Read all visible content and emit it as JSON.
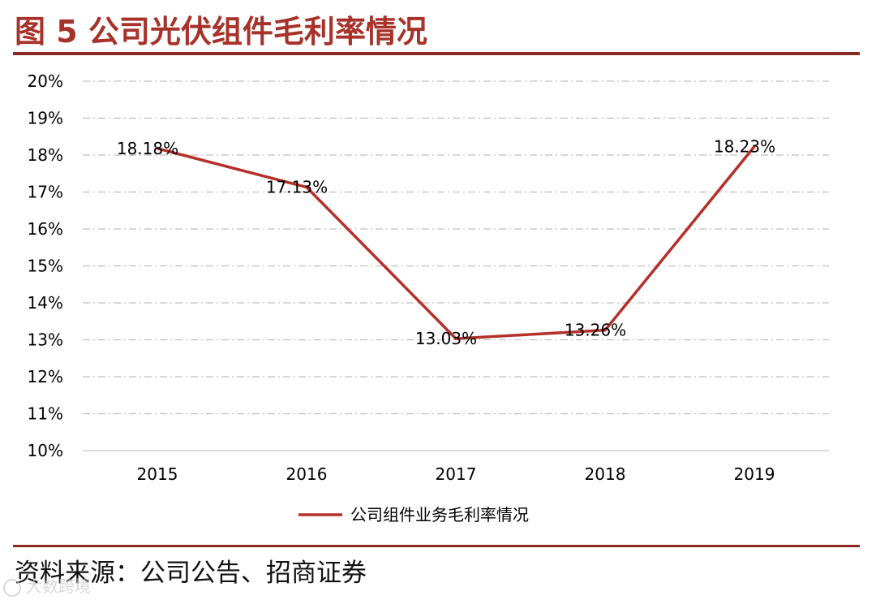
{
  "figure": {
    "title": "图 5 公司光伏组件毛利率情况",
    "source": "资料来源：公司公告、招商证券",
    "watermark": "大数跨境"
  },
  "colors": {
    "accent": "#a7322a",
    "rule": "#8b2a24",
    "grid": "#bfbfbf",
    "text": "#000000"
  },
  "chart_data": {
    "type": "line",
    "categories": [
      "2015",
      "2016",
      "2017",
      "2018",
      "2019"
    ],
    "series": [
      {
        "name": "公司组件业务毛利率情况",
        "values": [
          18.18,
          17.13,
          13.03,
          13.26,
          18.23
        ],
        "labels": [
          "18.18%",
          "17.13%",
          "13.03%",
          "13.26%",
          "18.23%"
        ],
        "color": "#b5302a"
      }
    ],
    "ylim": [
      10,
      20
    ],
    "yticks": [
      10,
      11,
      12,
      13,
      14,
      15,
      16,
      17,
      18,
      19,
      20
    ],
    "ytick_labels": [
      "10%",
      "11%",
      "12%",
      "13%",
      "14%",
      "15%",
      "16%",
      "17%",
      "18%",
      "19%",
      "20%"
    ],
    "grid": true,
    "legend": "bottom",
    "title": "",
    "xlabel": "",
    "ylabel": ""
  }
}
